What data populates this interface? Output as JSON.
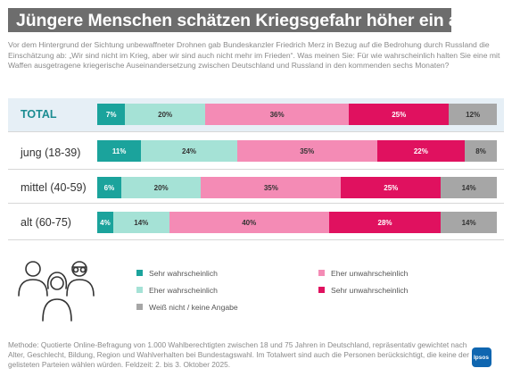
{
  "title": "Jüngere Menschen schätzen Kriegsgefahr höher ein als Ältere",
  "intro": "Vor dem Hintergrund der Sichtung unbewaffneter Drohnen gab Bundeskanzler Friedrich Merz in Bezug auf die Bedrohung durch Russland die Einschätzung ab: „Wir sind nicht im Krieg, aber wir sind auch nicht mehr im Frieden“. Was meinen Sie: Für wie wahrscheinlich halten Sie eine mit Waffen ausgetragene kriegerische Auseinandersetzung zwischen Deutschland und Russland in den kommenden sechs Monaten?",
  "method": "Methode: Quotierte Online-Befragung von 1.000 Wahlberechtigten zwischen 18 und 75 Jahren in Deutschland, repräsentativ gewichtet nach Alter, Geschlecht, Bildung, Region und Wahlverhalten bei Bundestagswahl. Im Totalwert sind auch die Personen berücksichtigt, die keine der gelisteten Parteien wählen würden. Feldzeit: 2. bis 3. Oktober 2025.",
  "logo_text": "Ipsos",
  "colors": {
    "sehr_wahrscheinlich": "#1ba39c",
    "eher_wahrscheinlich": "#a5e2d6",
    "eher_unwahrscheinlich": "#f48bb5",
    "sehr_unwahrscheinlich": "#e0115f",
    "weiss_nicht": "#a6a6a6"
  },
  "chart_data": {
    "type": "bar",
    "orientation": "horizontal",
    "stacked": true,
    "unit": "%",
    "categories": [
      "TOTAL",
      "jung (18-39)",
      "mittel (40-59)",
      "alt (60-75)"
    ],
    "series": [
      {
        "name": "Sehr wahrscheinlich",
        "values": [
          7,
          11,
          6,
          4
        ],
        "labels": [
          "7%",
          "11%",
          "6%",
          "4%"
        ]
      },
      {
        "name": "Eher wahrscheinlich",
        "values": [
          20,
          24,
          20,
          14
        ],
        "labels": [
          "20%",
          "24%",
          "20%",
          "14%"
        ]
      },
      {
        "name": "Eher unwahrscheinlich",
        "values": [
          36,
          35,
          35,
          40
        ],
        "labels": [
          "36%",
          "35%",
          "35%",
          "40%"
        ]
      },
      {
        "name": "Sehr unwahrscheinlich",
        "values": [
          25,
          22,
          25,
          28
        ],
        "labels": [
          "25%",
          "22%",
          "25%",
          "28%"
        ]
      },
      {
        "name": "Weiß nicht / keine Angabe",
        "values": [
          12,
          8,
          14,
          14
        ],
        "labels": [
          "12%",
          "8%",
          "14%",
          "14%"
        ]
      }
    ],
    "legend_order": [
      "Sehr wahrscheinlich",
      "Eher unwahrscheinlich",
      "Eher wahrscheinlich",
      "Sehr unwahrscheinlich",
      "Weiß nicht / keine Angabe"
    ],
    "legend_position": "bottom",
    "xlim": [
      0,
      100
    ],
    "grid": false
  }
}
